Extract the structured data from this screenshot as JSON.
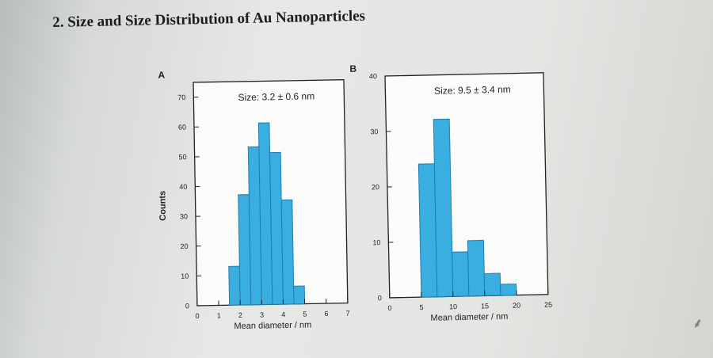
{
  "slide": {
    "heading": "2. Size and Size Distribution of Au Nanoparticles"
  },
  "colors": {
    "bar_fill": "#3aaee0",
    "bar_edge": "#1f7fae",
    "axis": "#222222",
    "text": "#222222"
  },
  "chart_data": [
    {
      "type": "bar",
      "panel_label": "A",
      "annotation": "Size: 3.2 ± 0.6 nm",
      "xlabel": "Mean diameter / nm",
      "ylabel": "Counts",
      "xlim": [
        0,
        7
      ],
      "ylim": [
        0,
        75
      ],
      "xticks": [
        0,
        1,
        2,
        3,
        4,
        5,
        6,
        7
      ],
      "yticks": [
        0,
        10,
        20,
        30,
        40,
        50,
        60,
        70
      ],
      "bin_width": 0.5,
      "bin_starts": [
        1.5,
        2.0,
        2.5,
        3.0,
        3.5,
        4.0,
        4.5
      ],
      "values": [
        13,
        37,
        53,
        61,
        51,
        35,
        6
      ]
    },
    {
      "type": "bar",
      "panel_label": "B",
      "annotation": "Size: 9.5 ± 3.4 nm",
      "xlabel": "Mean diameter / nm",
      "ylabel": "",
      "xlim": [
        0,
        25
      ],
      "ylim": [
        0,
        40
      ],
      "xticks": [
        0,
        5,
        10,
        15,
        20,
        25
      ],
      "yticks": [
        0,
        10,
        20,
        30,
        40
      ],
      "bin_width": 2.5,
      "bin_starts": [
        5.0,
        7.5,
        10.0,
        12.5,
        15.0,
        17.5
      ],
      "values": [
        24,
        32,
        8,
        10,
        4,
        2
      ]
    }
  ]
}
